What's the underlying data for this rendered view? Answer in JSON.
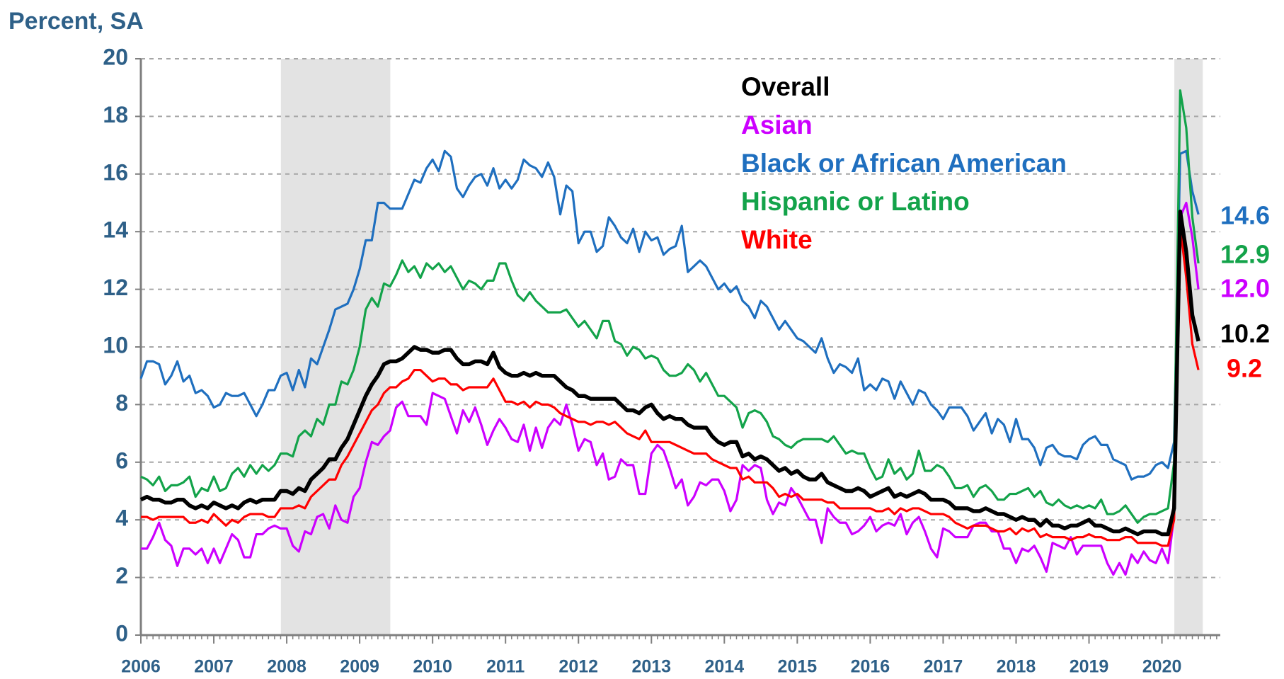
{
  "chart_data": {
    "type": "line",
    "axis_title": "Percent, SA",
    "x_start": 2006,
    "frequency": "monthly",
    "xlim": [
      2006,
      2020.8
    ],
    "xticks": [
      2006,
      2007,
      2008,
      2009,
      2010,
      2011,
      2012,
      2013,
      2014,
      2015,
      2016,
      2017,
      2018,
      2019,
      2020
    ],
    "ylim": [
      0,
      20
    ],
    "yticks": [
      0,
      2,
      4,
      6,
      8,
      10,
      12,
      14,
      16,
      18,
      20
    ],
    "grid": true,
    "shaded_periods": [
      [
        2007.92,
        2009.42
      ],
      [
        2020.17,
        2020.56
      ]
    ],
    "series": [
      {
        "name": "Overall",
        "color": "#000000",
        "end_label": "10.2",
        "values": [
          4.7,
          4.8,
          4.7,
          4.7,
          4.6,
          4.6,
          4.7,
          4.7,
          4.5,
          4.4,
          4.5,
          4.4,
          4.6,
          4.5,
          4.4,
          4.5,
          4.4,
          4.6,
          4.7,
          4.6,
          4.7,
          4.7,
          4.7,
          5.0,
          5.0,
          4.9,
          5.1,
          5.0,
          5.4,
          5.6,
          5.8,
          6.1,
          6.1,
          6.5,
          6.8,
          7.3,
          7.8,
          8.3,
          8.7,
          9.0,
          9.4,
          9.5,
          9.5,
          9.6,
          9.8,
          10.0,
          9.9,
          9.9,
          9.8,
          9.8,
          9.9,
          9.9,
          9.6,
          9.4,
          9.4,
          9.5,
          9.5,
          9.4,
          9.8,
          9.3,
          9.1,
          9.0,
          9.0,
          9.1,
          9.0,
          9.1,
          9.0,
          9.0,
          9.0,
          8.8,
          8.6,
          8.5,
          8.3,
          8.3,
          8.2,
          8.2,
          8.2,
          8.2,
          8.2,
          8.0,
          7.8,
          7.8,
          7.7,
          7.9,
          8.0,
          7.7,
          7.5,
          7.6,
          7.5,
          7.5,
          7.3,
          7.2,
          7.2,
          7.2,
          6.9,
          6.7,
          6.6,
          6.7,
          6.7,
          6.2,
          6.3,
          6.1,
          6.2,
          6.1,
          5.9,
          5.7,
          5.8,
          5.6,
          5.7,
          5.5,
          5.4,
          5.4,
          5.6,
          5.3,
          5.2,
          5.1,
          5.0,
          5.0,
          5.1,
          5.0,
          4.8,
          4.9,
          5.0,
          5.1,
          4.8,
          4.9,
          4.8,
          4.9,
          5.0,
          4.9,
          4.7,
          4.7,
          4.7,
          4.6,
          4.4,
          4.4,
          4.4,
          4.3,
          4.3,
          4.4,
          4.3,
          4.2,
          4.2,
          4.1,
          4.0,
          4.1,
          4.0,
          4.0,
          3.8,
          4.0,
          3.8,
          3.8,
          3.7,
          3.8,
          3.8,
          3.9,
          4.0,
          3.8,
          3.8,
          3.7,
          3.6,
          3.6,
          3.7,
          3.6,
          3.5,
          3.6,
          3.6,
          3.6,
          3.5,
          3.5,
          4.4,
          14.7,
          13.3,
          11.1,
          10.2
        ]
      },
      {
        "name": "Asian",
        "color": "#cc00ff",
        "end_label": "12.0",
        "values": [
          3.0,
          3.0,
          3.4,
          3.9,
          3.3,
          3.1,
          2.4,
          3.0,
          3.0,
          2.8,
          3.0,
          2.5,
          3.0,
          2.5,
          3.0,
          3.5,
          3.3,
          2.7,
          2.7,
          3.5,
          3.5,
          3.7,
          3.8,
          3.7,
          3.7,
          3.1,
          2.9,
          3.6,
          3.5,
          4.1,
          4.2,
          3.7,
          4.5,
          4.0,
          3.9,
          4.8,
          5.1,
          6.0,
          6.7,
          6.6,
          6.9,
          7.1,
          7.9,
          8.1,
          7.6,
          7.6,
          7.6,
          7.3,
          8.4,
          8.3,
          8.2,
          7.6,
          7.0,
          7.8,
          7.4,
          7.9,
          7.3,
          6.6,
          7.1,
          7.5,
          7.2,
          6.8,
          6.7,
          7.3,
          6.4,
          7.2,
          6.5,
          7.2,
          7.5,
          7.3,
          8.0,
          7.3,
          6.4,
          6.8,
          6.7,
          5.9,
          6.3,
          5.4,
          5.5,
          6.1,
          5.9,
          5.9,
          4.9,
          4.9,
          6.3,
          6.6,
          6.4,
          5.8,
          5.1,
          5.4,
          4.5,
          4.8,
          5.3,
          5.2,
          5.4,
          5.4,
          5.0,
          4.3,
          4.7,
          5.9,
          5.7,
          5.9,
          5.8,
          4.7,
          4.2,
          4.6,
          4.5,
          5.1,
          4.8,
          4.4,
          4.0,
          4.0,
          3.2,
          4.4,
          4.1,
          3.9,
          3.9,
          3.5,
          3.6,
          3.8,
          4.1,
          3.6,
          3.8,
          3.9,
          3.8,
          4.2,
          3.5,
          3.9,
          4.1,
          3.6,
          3.0,
          2.7,
          3.7,
          3.6,
          3.4,
          3.4,
          3.4,
          3.8,
          3.9,
          3.9,
          3.6,
          3.6,
          3.0,
          3.0,
          2.5,
          3.0,
          2.9,
          3.1,
          2.7,
          2.2,
          3.2,
          3.1,
          3.0,
          3.4,
          2.8,
          3.1,
          3.1,
          3.1,
          3.1,
          2.5,
          2.1,
          2.5,
          2.1,
          2.8,
          2.5,
          2.9,
          2.6,
          2.5,
          3.0,
          2.5,
          4.1,
          14.5,
          15.0,
          13.8,
          12.0
        ]
      },
      {
        "name": "Black or African American",
        "color": "#1f6fbf",
        "end_label": "14.6",
        "values": [
          8.9,
          9.5,
          9.5,
          9.4,
          8.7,
          9.0,
          9.5,
          8.8,
          9.0,
          8.4,
          8.5,
          8.3,
          7.9,
          8.0,
          8.4,
          8.3,
          8.3,
          8.4,
          8.0,
          7.6,
          8.0,
          8.5,
          8.5,
          9.0,
          9.1,
          8.5,
          9.2,
          8.6,
          9.6,
          9.4,
          10.0,
          10.6,
          11.3,
          11.4,
          11.5,
          12.0,
          12.7,
          13.7,
          13.7,
          15.0,
          15.0,
          14.8,
          14.8,
          14.8,
          15.3,
          15.8,
          15.7,
          16.2,
          16.5,
          16.1,
          16.8,
          16.6,
          15.5,
          15.2,
          15.6,
          15.9,
          16.0,
          15.6,
          16.2,
          15.5,
          15.8,
          15.5,
          15.8,
          16.5,
          16.3,
          16.2,
          15.9,
          16.4,
          15.9,
          14.6,
          15.6,
          15.4,
          13.6,
          14.0,
          14.0,
          13.3,
          13.5,
          14.5,
          14.2,
          13.8,
          13.6,
          14.1,
          13.3,
          14.0,
          13.7,
          13.8,
          13.2,
          13.4,
          13.5,
          14.2,
          12.6,
          12.8,
          13.0,
          12.8,
          12.4,
          12.0,
          12.2,
          11.9,
          12.1,
          11.6,
          11.4,
          11.0,
          11.6,
          11.4,
          11.0,
          10.6,
          10.9,
          10.6,
          10.3,
          10.2,
          10.0,
          9.8,
          10.3,
          9.6,
          9.1,
          9.4,
          9.3,
          9.1,
          9.6,
          8.5,
          8.7,
          8.5,
          8.9,
          8.8,
          8.2,
          8.8,
          8.4,
          8.0,
          8.5,
          8.4,
          8.0,
          7.8,
          7.5,
          7.9,
          7.9,
          7.9,
          7.6,
          7.1,
          7.4,
          7.7,
          7.0,
          7.5,
          7.3,
          6.7,
          7.5,
          6.8,
          6.8,
          6.5,
          5.9,
          6.5,
          6.6,
          6.3,
          6.2,
          6.2,
          6.1,
          6.6,
          6.8,
          6.9,
          6.6,
          6.6,
          6.1,
          6.0,
          5.9,
          5.4,
          5.5,
          5.5,
          5.6,
          5.9,
          6.0,
          5.8,
          6.7,
          16.7,
          16.8,
          15.4,
          14.6
        ]
      },
      {
        "name": "Hispanic or Latino",
        "color": "#13a34a",
        "end_label": "12.9",
        "values": [
          5.5,
          5.4,
          5.2,
          5.5,
          5.0,
          5.2,
          5.2,
          5.3,
          5.5,
          4.8,
          5.1,
          5.0,
          5.5,
          5.0,
          5.1,
          5.6,
          5.8,
          5.5,
          5.9,
          5.6,
          5.9,
          5.7,
          5.9,
          6.3,
          6.3,
          6.2,
          6.9,
          7.1,
          6.9,
          7.5,
          7.3,
          8.0,
          8.0,
          8.8,
          8.7,
          9.2,
          10.0,
          11.3,
          11.7,
          11.4,
          12.2,
          12.1,
          12.5,
          13.0,
          12.6,
          12.8,
          12.4,
          12.9,
          12.7,
          12.9,
          12.6,
          12.8,
          12.4,
          12.0,
          12.3,
          12.2,
          12.0,
          12.3,
          12.3,
          12.9,
          12.9,
          12.3,
          11.8,
          11.6,
          11.9,
          11.6,
          11.4,
          11.2,
          11.2,
          11.2,
          11.3,
          11.0,
          10.7,
          10.9,
          10.6,
          10.3,
          10.9,
          10.9,
          10.2,
          10.1,
          9.7,
          10.0,
          9.9,
          9.6,
          9.7,
          9.6,
          9.2,
          9.0,
          9.0,
          9.1,
          9.4,
          9.2,
          8.8,
          9.1,
          8.7,
          8.3,
          8.3,
          8.1,
          7.9,
          7.2,
          7.7,
          7.8,
          7.7,
          7.4,
          6.9,
          6.8,
          6.6,
          6.5,
          6.7,
          6.8,
          6.8,
          6.8,
          6.8,
          6.7,
          6.9,
          6.6,
          6.3,
          6.4,
          6.3,
          6.3,
          5.8,
          5.4,
          5.5,
          6.1,
          5.6,
          5.8,
          5.4,
          5.6,
          6.4,
          5.7,
          5.7,
          5.9,
          5.8,
          5.5,
          5.1,
          5.1,
          5.2,
          4.8,
          5.1,
          5.2,
          5.0,
          4.7,
          4.7,
          4.9,
          4.9,
          5.0,
          5.1,
          4.8,
          5.0,
          4.6,
          4.5,
          4.7,
          4.5,
          4.4,
          4.5,
          4.4,
          4.5,
          4.4,
          4.7,
          4.2,
          4.2,
          4.3,
          4.5,
          4.2,
          3.9,
          4.1,
          4.2,
          4.2,
          4.3,
          4.4,
          6.0,
          18.9,
          17.6,
          14.5,
          12.9
        ]
      },
      {
        "name": "White",
        "color": "#ff0000",
        "end_label": "9.2",
        "values": [
          4.1,
          4.1,
          4.0,
          4.1,
          4.1,
          4.1,
          4.1,
          4.1,
          3.9,
          3.9,
          4.0,
          3.9,
          4.2,
          4.0,
          3.8,
          4.0,
          3.9,
          4.1,
          4.2,
          4.2,
          4.2,
          4.1,
          4.1,
          4.4,
          4.4,
          4.4,
          4.5,
          4.4,
          4.8,
          5.0,
          5.2,
          5.4,
          5.4,
          5.9,
          6.2,
          6.6,
          7.0,
          7.4,
          7.8,
          8.0,
          8.4,
          8.6,
          8.6,
          8.8,
          8.9,
          9.2,
          9.2,
          9.0,
          8.8,
          8.9,
          8.9,
          8.7,
          8.7,
          8.5,
          8.6,
          8.6,
          8.6,
          8.6,
          8.9,
          8.5,
          8.1,
          8.1,
          8.0,
          8.1,
          7.9,
          8.1,
          8.0,
          8.0,
          7.9,
          7.7,
          7.6,
          7.5,
          7.4,
          7.4,
          7.3,
          7.4,
          7.4,
          7.3,
          7.4,
          7.2,
          7.0,
          6.9,
          6.8,
          7.1,
          6.7,
          6.7,
          6.7,
          6.7,
          6.6,
          6.5,
          6.4,
          6.3,
          6.3,
          6.3,
          6.1,
          6.0,
          5.9,
          5.8,
          5.8,
          5.4,
          5.5,
          5.3,
          5.3,
          5.3,
          5.1,
          4.8,
          4.9,
          4.8,
          4.9,
          4.7,
          4.7,
          4.7,
          4.7,
          4.6,
          4.6,
          4.4,
          4.4,
          4.4,
          4.4,
          4.4,
          4.4,
          4.3,
          4.3,
          4.4,
          4.2,
          4.4,
          4.3,
          4.4,
          4.4,
          4.3,
          4.2,
          4.2,
          4.2,
          4.1,
          3.9,
          3.8,
          3.7,
          3.8,
          3.8,
          3.8,
          3.7,
          3.6,
          3.6,
          3.7,
          3.5,
          3.7,
          3.6,
          3.7,
          3.4,
          3.5,
          3.4,
          3.4,
          3.4,
          3.3,
          3.4,
          3.4,
          3.5,
          3.4,
          3.4,
          3.3,
          3.3,
          3.3,
          3.4,
          3.4,
          3.2,
          3.2,
          3.2,
          3.2,
          3.1,
          3.1,
          4.0,
          14.2,
          12.4,
          10.1,
          9.2
        ]
      }
    ]
  }
}
